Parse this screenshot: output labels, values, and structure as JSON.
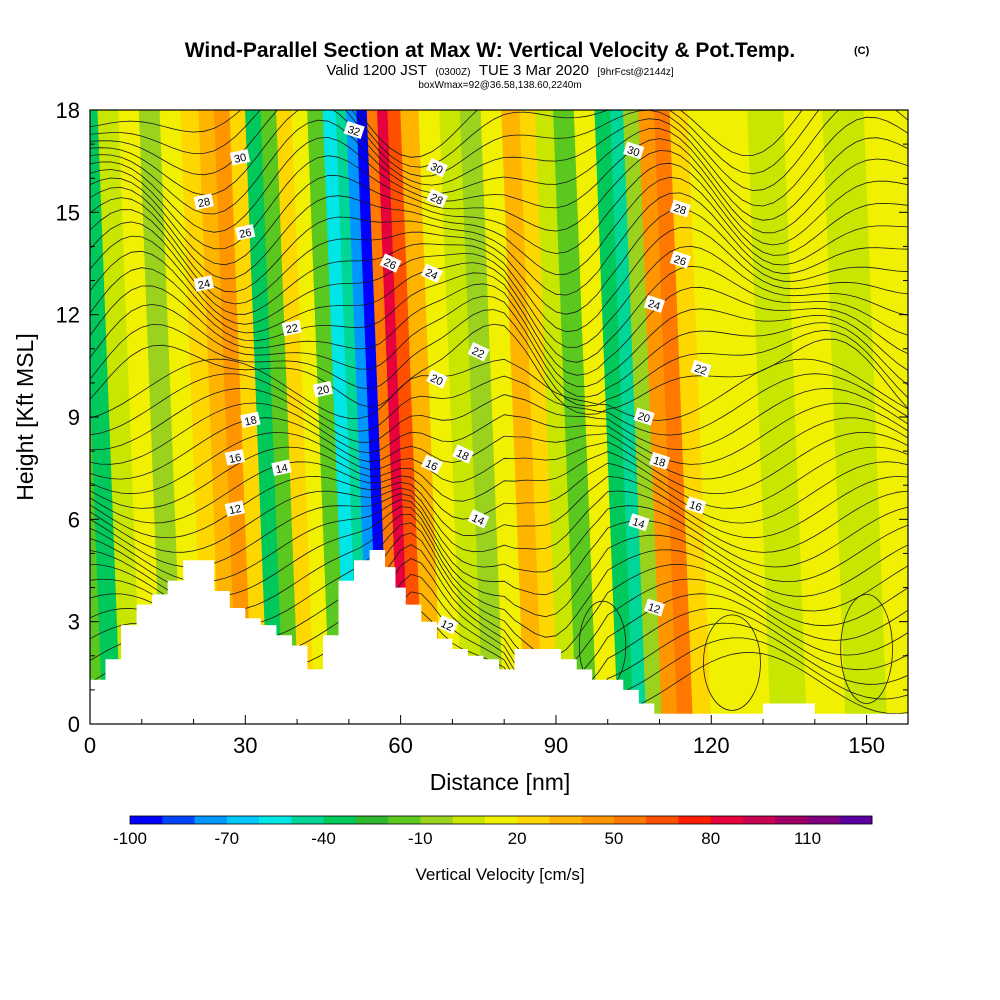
{
  "chart_data": {
    "type": "heatmap",
    "title": "Wind-Parallel Section at Max W: Vertical Velocity & Pot.Temp.",
    "title_mark": "(C)",
    "subtitle_main": "Valid 1200 JST",
    "subtitle_utc": "(0300Z)",
    "subtitle_date": "TUE 3 Mar 2020",
    "subtitle_fcst": "[9hrFcst@2144z]",
    "subtitle2": "boxWmax=92@36.58,138.60,2240m",
    "xlabel": "Distance [nm]",
    "ylabel": "Height [Kft MSL]",
    "xlim": [
      0,
      158
    ],
    "ylim": [
      0,
      18
    ],
    "x_ticks": [
      0,
      30,
      60,
      90,
      120,
      150
    ],
    "y_ticks": [
      0,
      3,
      6,
      9,
      12,
      15,
      18
    ],
    "colorbar": {
      "title": "Vertical Velocity [cm/s]",
      "labels": [
        "-100",
        "-70",
        "-40",
        "-10",
        "20",
        "50",
        "80",
        "110"
      ],
      "label_values": [
        -100,
        -70,
        -40,
        -10,
        20,
        50,
        80,
        110
      ],
      "min": -100,
      "max": 130,
      "colors": [
        "#0000ff",
        "#0046ff",
        "#0096ff",
        "#00c8ff",
        "#00e6e6",
        "#00d796",
        "#00c85a",
        "#2eb82e",
        "#5ac81e",
        "#9ad21e",
        "#c8e600",
        "#f0f000",
        "#ffd700",
        "#ffb400",
        "#ff9600",
        "#ff7800",
        "#ff5000",
        "#ff1e00",
        "#e6003c",
        "#c80050",
        "#a00064",
        "#800080",
        "#5a00a0"
      ]
    },
    "vertical_velocity_bands": [
      {
        "x": 1,
        "w": -15
      },
      {
        "x": 4,
        "w": -35
      },
      {
        "x": 8,
        "w": 0
      },
      {
        "x": 12,
        "w": 10
      },
      {
        "x": 16,
        "w": -5
      },
      {
        "x": 20,
        "w": 15
      },
      {
        "x": 24,
        "w": 25
      },
      {
        "x": 27,
        "w": 35
      },
      {
        "x": 30,
        "w": 40
      },
      {
        "x": 33,
        "w": 20
      },
      {
        "x": 36,
        "w": -40
      },
      {
        "x": 39,
        "w": -15
      },
      {
        "x": 42,
        "w": 20
      },
      {
        "x": 45,
        "w": 15
      },
      {
        "x": 48,
        "w": -20
      },
      {
        "x": 51,
        "w": -55
      },
      {
        "x": 53,
        "w": -45
      },
      {
        "x": 55,
        "w": -75
      },
      {
        "x": 57,
        "w": -95
      },
      {
        "x": 59,
        "w": 50
      },
      {
        "x": 61,
        "w": 85
      },
      {
        "x": 63,
        "w": 60
      },
      {
        "x": 66,
        "w": 30
      },
      {
        "x": 70,
        "w": 15
      },
      {
        "x": 74,
        "w": 5
      },
      {
        "x": 78,
        "w": -10
      },
      {
        "x": 82,
        "w": 10
      },
      {
        "x": 86,
        "w": 35
      },
      {
        "x": 89,
        "w": 25
      },
      {
        "x": 92,
        "w": 5
      },
      {
        "x": 96,
        "w": -15
      },
      {
        "x": 100,
        "w": 10
      },
      {
        "x": 104,
        "w": -35
      },
      {
        "x": 106,
        "w": -45
      },
      {
        "x": 109,
        "w": -10
      },
      {
        "x": 112,
        "w": 40
      },
      {
        "x": 115,
        "w": 50
      },
      {
        "x": 118,
        "w": 25
      },
      {
        "x": 122,
        "w": 10
      },
      {
        "x": 128,
        "w": 15
      },
      {
        "x": 135,
        "w": 5
      },
      {
        "x": 142,
        "w": 10
      },
      {
        "x": 150,
        "w": 0
      },
      {
        "x": 158,
        "w": 10
      }
    ],
    "potential_temperature_labels": [
      {
        "text": "32",
        "x": 51,
        "y": 17.4
      },
      {
        "text": "30",
        "x": 29,
        "y": 16.6
      },
      {
        "text": "30",
        "x": 67,
        "y": 16.3
      },
      {
        "text": "30",
        "x": 105,
        "y": 16.8
      },
      {
        "text": "28",
        "x": 22,
        "y": 15.3
      },
      {
        "text": "28",
        "x": 67,
        "y": 15.4
      },
      {
        "text": "28",
        "x": 114,
        "y": 15.1
      },
      {
        "text": "26",
        "x": 30,
        "y": 14.4
      },
      {
        "text": "26",
        "x": 58,
        "y": 13.5
      },
      {
        "text": "26",
        "x": 114,
        "y": 13.6
      },
      {
        "text": "24",
        "x": 22,
        "y": 12.9
      },
      {
        "text": "24",
        "x": 66,
        "y": 13.2
      },
      {
        "text": "24",
        "x": 109,
        "y": 12.3
      },
      {
        "text": "22",
        "x": 39,
        "y": 11.6
      },
      {
        "text": "22",
        "x": 75,
        "y": 10.9
      },
      {
        "text": "22",
        "x": 118,
        "y": 10.4
      },
      {
        "text": "20",
        "x": 45,
        "y": 9.8
      },
      {
        "text": "20",
        "x": 67,
        "y": 10.1
      },
      {
        "text": "20",
        "x": 107,
        "y": 9.0
      },
      {
        "text": "18",
        "x": 31,
        "y": 8.9
      },
      {
        "text": "18",
        "x": 72,
        "y": 7.9
      },
      {
        "text": "18",
        "x": 110,
        "y": 7.7
      },
      {
        "text": "16",
        "x": 28,
        "y": 7.8
      },
      {
        "text": "16",
        "x": 66,
        "y": 7.6
      },
      {
        "text": "16",
        "x": 117,
        "y": 6.4
      },
      {
        "text": "14",
        "x": 37,
        "y": 7.5
      },
      {
        "text": "14",
        "x": 75,
        "y": 6.0
      },
      {
        "text": "14",
        "x": 106,
        "y": 5.9
      },
      {
        "text": "12",
        "x": 28,
        "y": 6.3
      },
      {
        "text": "12",
        "x": 69,
        "y": 2.9
      },
      {
        "text": "12",
        "x": 109,
        "y": 3.4
      }
    ],
    "terrain": [
      [
        0,
        1.3
      ],
      [
        3,
        1.3
      ],
      [
        3,
        1.9
      ],
      [
        6,
        1.9
      ],
      [
        6,
        2.9
      ],
      [
        9,
        2.9
      ],
      [
        9,
        3.5
      ],
      [
        12,
        3.5
      ],
      [
        12,
        3.8
      ],
      [
        15,
        3.8
      ],
      [
        15,
        4.2
      ],
      [
        18,
        4.2
      ],
      [
        18,
        4.8
      ],
      [
        21,
        4.8
      ],
      [
        21,
        4.8
      ],
      [
        24,
        4.8
      ],
      [
        24,
        3.9
      ],
      [
        27,
        3.9
      ],
      [
        27,
        3.4
      ],
      [
        30,
        3.4
      ],
      [
        30,
        3.1
      ],
      [
        33,
        3.1
      ],
      [
        33,
        2.9
      ],
      [
        36,
        2.9
      ],
      [
        36,
        2.6
      ],
      [
        39,
        2.6
      ],
      [
        39,
        2.3
      ],
      [
        42,
        2.3
      ],
      [
        42,
        1.6
      ],
      [
        45,
        1.6
      ],
      [
        45,
        2.6
      ],
      [
        48,
        2.6
      ],
      [
        48,
        4.2
      ],
      [
        51,
        4.2
      ],
      [
        51,
        4.8
      ],
      [
        54,
        4.8
      ],
      [
        54,
        5.1
      ],
      [
        57,
        5.1
      ],
      [
        57,
        4.6
      ],
      [
        59,
        4.6
      ],
      [
        59,
        4.0
      ],
      [
        61,
        4.0
      ],
      [
        61,
        3.5
      ],
      [
        64,
        3.5
      ],
      [
        64,
        3.0
      ],
      [
        67,
        3.0
      ],
      [
        67,
        2.5
      ],
      [
        70,
        2.5
      ],
      [
        70,
        2.2
      ],
      [
        73,
        2.2
      ],
      [
        73,
        2.0
      ],
      [
        76,
        2.0
      ],
      [
        76,
        1.9
      ],
      [
        79,
        1.9
      ],
      [
        79,
        1.6
      ],
      [
        82,
        1.6
      ],
      [
        82,
        2.2
      ],
      [
        85,
        2.2
      ],
      [
        85,
        2.2
      ],
      [
        88,
        2.2
      ],
      [
        88,
        2.2
      ],
      [
        91,
        2.2
      ],
      [
        91,
        1.9
      ],
      [
        94,
        1.9
      ],
      [
        94,
        1.6
      ],
      [
        97,
        1.6
      ],
      [
        97,
        1.3
      ],
      [
        100,
        1.3
      ],
      [
        100,
        1.3
      ],
      [
        103,
        1.3
      ],
      [
        103,
        1.0
      ],
      [
        106,
        1.0
      ],
      [
        106,
        0.6
      ],
      [
        109,
        0.6
      ],
      [
        109,
        0.3
      ],
      [
        112,
        0.3
      ],
      [
        112,
        0.3
      ],
      [
        130,
        0.3
      ],
      [
        130,
        0.6
      ],
      [
        137,
        0.6
      ],
      [
        137,
        0.6
      ],
      [
        140,
        0.6
      ],
      [
        140,
        0.3
      ],
      [
        158,
        0.3
      ]
    ]
  }
}
